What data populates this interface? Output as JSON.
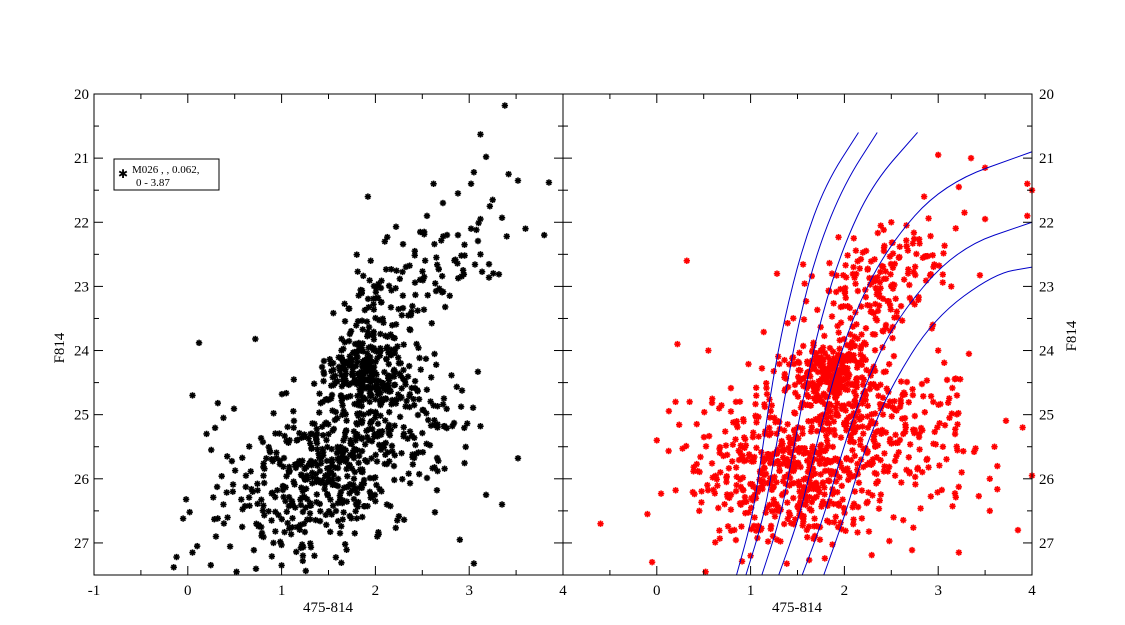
{
  "chart_data": [
    {
      "panel": "left",
      "type": "scatter",
      "xlabel": "475-814",
      "ylabel": "F814",
      "xlim": [
        -1,
        4
      ],
      "ylim": [
        27.5,
        20
      ],
      "y_inverted": true,
      "x_ticks": [
        "-1",
        "0",
        "1",
        "2",
        "3",
        "4"
      ],
      "y_ticks": [
        "20",
        "21",
        "22",
        "23",
        "24",
        "25",
        "26",
        "27"
      ],
      "marker_color": "#000000",
      "marker": "asterisk",
      "legend": {
        "placement": "top-left",
        "lines": [
          "M026 ,   , 0.062,",
          "0 - 3.87"
        ]
      },
      "points_note": "approx. 900 stars; dense clump near (1.9, 24.4), second clump near (1.4, 26.0), sparse tail up to (3.4, 20.2)",
      "points": [
        [
          3.38,
          20.18
        ],
        [
          3.12,
          20.63
        ],
        [
          3.18,
          20.98
        ],
        [
          3.05,
          21.22
        ],
        [
          3.42,
          21.25
        ],
        [
          3.52,
          21.35
        ],
        [
          2.62,
          21.4
        ],
        [
          3.02,
          21.4
        ],
        [
          3.85,
          21.38
        ],
        [
          2.88,
          21.55
        ],
        [
          1.92,
          21.6
        ],
        [
          3.25,
          21.65
        ],
        [
          2.72,
          21.7
        ],
        [
          3.22,
          21.75
        ],
        [
          2.55,
          21.9
        ],
        [
          3.12,
          21.95
        ],
        [
          3.35,
          21.93
        ],
        [
          3.02,
          22.1
        ],
        [
          2.22,
          22.07
        ],
        [
          3.6,
          22.1
        ],
        [
          2.52,
          22.15
        ],
        [
          2.88,
          22.2
        ],
        [
          3.8,
          22.2
        ],
        [
          3.4,
          22.22
        ],
        [
          2.95,
          22.35
        ],
        [
          2.1,
          22.3
        ],
        [
          2.42,
          22.45
        ],
        [
          3.12,
          22.5
        ],
        [
          1.95,
          22.6
        ],
        [
          2.65,
          22.55
        ],
        [
          0.12,
          23.88
        ],
        [
          0.72,
          23.82
        ],
        [
          0.05,
          24.7
        ],
        [
          0.32,
          24.82
        ],
        [
          0.38,
          25.05
        ],
        [
          0.2,
          25.3
        ],
        [
          0.25,
          25.55
        ],
        [
          0.42,
          25.65
        ],
        [
          0.48,
          26.2
        ],
        [
          0.62,
          25.95
        ],
        [
          0.38,
          26.4
        ],
        [
          0.02,
          26.52
        ],
        [
          -0.05,
          26.62
        ],
        [
          0.58,
          26.75
        ],
        [
          0.3,
          26.9
        ],
        [
          0.1,
          27.05
        ],
        [
          0.05,
          27.15
        ],
        [
          -0.12,
          27.22
        ],
        [
          -0.15,
          27.38
        ],
        [
          0.52,
          27.45
        ],
        [
          1.0,
          27.35
        ],
        [
          1.35,
          27.2
        ],
        [
          1.78,
          26.85
        ],
        [
          2.02,
          26.9
        ],
        [
          2.9,
          26.95
        ],
        [
          3.05,
          27.32
        ],
        [
          3.52,
          25.68
        ],
        [
          3.18,
          26.25
        ],
        [
          3.35,
          26.4
        ],
        [
          3.12,
          25.18
        ]
      ],
      "density_clusters": [
        {
          "center": [
            1.9,
            24.35
          ],
          "spread": [
            0.22,
            0.28
          ],
          "count": 230
        },
        {
          "center": [
            2.15,
            23.3
          ],
          "spread": [
            0.28,
            0.35
          ],
          "count": 80
        },
        {
          "center": [
            1.5,
            25.9
          ],
          "spread": [
            0.42,
            0.55
          ],
          "count": 330
        },
        {
          "center": [
            2.25,
            25.0
          ],
          "spread": [
            0.45,
            0.5
          ],
          "count": 150
        },
        {
          "center": [
            2.75,
            22.6
          ],
          "spread": [
            0.3,
            0.3
          ],
          "count": 40
        },
        {
          "center": [
            0.95,
            26.4
          ],
          "spread": [
            0.35,
            0.5
          ],
          "count": 80
        }
      ]
    },
    {
      "panel": "right",
      "type": "scatter",
      "xlabel": "475-814",
      "ylabel": "F814",
      "xlim": [
        -1,
        4
      ],
      "ylim": [
        27.5,
        20
      ],
      "y_inverted": true,
      "x_ticks": [
        "0",
        "1",
        "2",
        "3",
        "4"
      ],
      "y_ticks": [
        "20",
        "21",
        "22",
        "23",
        "24",
        "25",
        "26",
        "27"
      ],
      "marker_color": "#ff0000",
      "marker": "asterisk",
      "curve_color": "#0000c8",
      "points_note": "approx. 1200 stars; dense clump near (1.85, 24.4); broad clump near (1.5, 26.0)",
      "points": [
        [
          0.32,
          22.6
        ],
        [
          0.55,
          24.0
        ],
        [
          0.22,
          23.9
        ],
        [
          0.35,
          24.8
        ],
        [
          0.2,
          24.8
        ],
        [
          0.0,
          25.4
        ],
        [
          -0.6,
          26.7
        ],
        [
          -0.1,
          26.55
        ],
        [
          -0.05,
          27.3
        ],
        [
          0.52,
          27.45
        ],
        [
          1.0,
          27.2
        ],
        [
          3.0,
          20.95
        ],
        [
          3.35,
          21.0
        ],
        [
          3.5,
          21.15
        ],
        [
          3.95,
          21.4
        ],
        [
          4.0,
          21.5
        ],
        [
          3.22,
          21.45
        ],
        [
          2.85,
          21.6
        ],
        [
          3.28,
          21.85
        ],
        [
          3.95,
          21.9
        ],
        [
          3.5,
          21.95
        ],
        [
          2.1,
          22.25
        ],
        [
          2.5,
          22.0
        ],
        [
          3.0,
          24.0
        ],
        [
          3.2,
          24.7
        ],
        [
          3.6,
          25.5
        ],
        [
          3.55,
          26.0
        ],
        [
          3.9,
          25.2
        ],
        [
          3.55,
          26.5
        ],
        [
          3.22,
          27.15
        ],
        [
          3.85,
          26.8
        ],
        [
          4.0,
          25.95
        ],
        [
          3.25,
          25.9
        ],
        [
          3.05,
          25.5
        ]
      ],
      "density_clusters": [
        {
          "center": [
            1.85,
            24.4
          ],
          "spread": [
            0.22,
            0.3
          ],
          "count": 260
        },
        {
          "center": [
            2.2,
            23.2
          ],
          "spread": [
            0.3,
            0.4
          ],
          "count": 120
        },
        {
          "center": [
            1.5,
            25.95
          ],
          "spread": [
            0.45,
            0.55
          ],
          "count": 420
        },
        {
          "center": [
            2.45,
            25.0
          ],
          "spread": [
            0.5,
            0.5
          ],
          "count": 180
        },
        {
          "center": [
            2.75,
            22.5
          ],
          "spread": [
            0.3,
            0.35
          ],
          "count": 60
        },
        {
          "center": [
            0.9,
            25.6
          ],
          "spread": [
            0.4,
            0.6
          ],
          "count": 110
        },
        {
          "center": [
            2.8,
            25.8
          ],
          "spread": [
            0.3,
            0.5
          ],
          "count": 40
        }
      ],
      "isochrones": [
        [
          [
            0.85,
            27.5
          ],
          [
            1.02,
            26.6
          ],
          [
            1.12,
            25.6
          ],
          [
            1.22,
            24.6
          ],
          [
            1.36,
            23.5
          ],
          [
            1.55,
            22.4
          ],
          [
            1.8,
            21.4
          ],
          [
            2.15,
            20.6
          ]
        ],
        [
          [
            0.95,
            27.5
          ],
          [
            1.14,
            26.6
          ],
          [
            1.26,
            25.6
          ],
          [
            1.38,
            24.6
          ],
          [
            1.52,
            23.5
          ],
          [
            1.72,
            22.4
          ],
          [
            2.0,
            21.4
          ],
          [
            2.35,
            20.6
          ]
        ],
        [
          [
            1.12,
            27.5
          ],
          [
            1.32,
            26.6
          ],
          [
            1.45,
            25.6
          ],
          [
            1.58,
            24.6
          ],
          [
            1.75,
            23.5
          ],
          [
            1.98,
            22.4
          ],
          [
            2.3,
            21.4
          ],
          [
            2.78,
            20.6
          ]
        ],
        [
          [
            1.3,
            27.5
          ],
          [
            1.52,
            26.6
          ],
          [
            1.68,
            25.6
          ],
          [
            1.85,
            24.6
          ],
          [
            2.08,
            23.5
          ],
          [
            2.45,
            22.4
          ],
          [
            3.05,
            21.4
          ],
          [
            4.0,
            20.9
          ]
        ],
        [
          [
            1.55,
            27.5
          ],
          [
            1.78,
            26.6
          ],
          [
            1.97,
            25.6
          ],
          [
            2.2,
            24.6
          ],
          [
            2.55,
            23.5
          ],
          [
            3.2,
            22.4
          ],
          [
            4.0,
            22.0
          ]
        ],
        [
          [
            1.78,
            27.5
          ],
          [
            2.0,
            26.6
          ],
          [
            2.2,
            25.6
          ],
          [
            2.48,
            24.6
          ],
          [
            2.95,
            23.5
          ],
          [
            3.6,
            22.8
          ],
          [
            4.0,
            22.7
          ]
        ]
      ]
    }
  ]
}
